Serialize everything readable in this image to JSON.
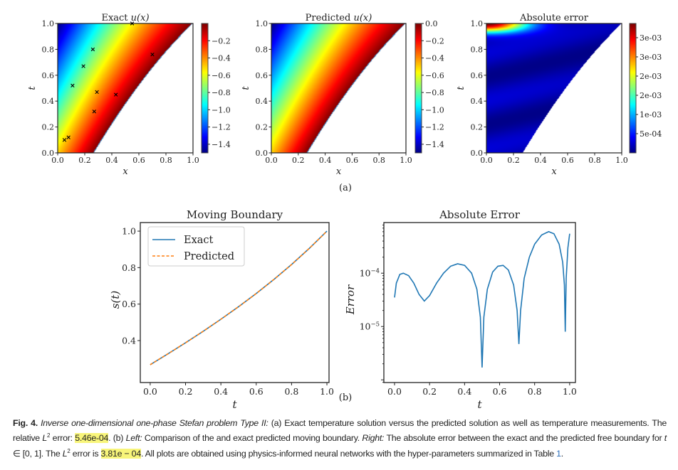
{
  "figure_a": {
    "label": "(a)",
    "colormap": "jet",
    "panels": [
      {
        "title": "Exact ",
        "title_math": "u(x)",
        "xlabel": "x",
        "ylabel": "t",
        "ticks": [
          "0.0",
          "0.2",
          "0.4",
          "0.6",
          "0.8",
          "1.0"
        ],
        "colorbar": {
          "range": [
            -1.5,
            0
          ],
          "ticks": [
            -0.2,
            -0.4,
            -0.6,
            -0.8,
            -1.0,
            -1.2,
            -1.4
          ],
          "labels": [
            "−0.2",
            "−0.4",
            "−0.6",
            "−0.8",
            "−1.0",
            "−1.2",
            "−1.4"
          ]
        },
        "measurements": [
          [
            0.05,
            0.1
          ],
          [
            0.08,
            0.12
          ],
          [
            0.11,
            0.52
          ],
          [
            0.19,
            0.67
          ],
          [
            0.26,
            0.8
          ],
          [
            0.27,
            0.32
          ],
          [
            0.29,
            0.47
          ],
          [
            0.43,
            0.45
          ],
          [
            0.55,
            1.0
          ],
          [
            0.7,
            0.76
          ]
        ]
      },
      {
        "title": "Predicted ",
        "title_math": "u(x)",
        "xlabel": "x",
        "ylabel": "t",
        "ticks": [
          "0.0",
          "0.2",
          "0.4",
          "0.6",
          "0.8",
          "1.0"
        ],
        "colorbar": {
          "range": [
            -1.5,
            0
          ],
          "ticks": [
            0.0,
            -0.2,
            -0.4,
            -0.6,
            -0.8,
            -1.0,
            -1.2,
            -1.4
          ],
          "labels": [
            "0.0",
            "−0.2",
            "−0.4",
            "−0.6",
            "−0.8",
            "−1.0",
            "−1.2",
            "−1.4"
          ]
        }
      },
      {
        "title": "Absolute error",
        "title_math": "",
        "xlabel": "x",
        "ylabel": "t",
        "ticks": [
          "0.0",
          "0.2",
          "0.4",
          "0.6",
          "0.8",
          "1.0"
        ],
        "colorbar": {
          "range": [
            0,
            0.00337
          ],
          "ticks": [
            0.003,
            0.0025,
            0.002,
            0.0015,
            0.001,
            0.0005
          ],
          "labels": [
            "3e-03",
            "3e-03",
            "2e-03",
            "2e-03",
            "1e-03",
            "5e-04"
          ]
        }
      }
    ]
  },
  "chart_data": [
    {
      "type": "line",
      "title": "Moving Boundary",
      "xlabel": "t",
      "ylabel": "s(t)",
      "xlim": [
        -0.056,
        1.012
      ],
      "ylim": [
        0.17,
        1.047
      ],
      "xticks": [
        "0.0",
        "0.2",
        "0.4",
        "0.6",
        "0.8",
        "1.0"
      ],
      "yticks": [
        "0.4",
        "0.6",
        "0.8",
        "1.0"
      ],
      "legend_position": "top-left",
      "x": [
        0.0,
        0.1,
        0.2,
        0.3,
        0.4,
        0.5,
        0.6,
        0.7,
        0.8,
        0.9,
        1.0
      ],
      "series": [
        {
          "name": "Exact",
          "color": "#1f77b4",
          "style": "solid",
          "values": [
            0.268,
            0.327,
            0.388,
            0.451,
            0.517,
            0.586,
            0.658,
            0.735,
            0.817,
            0.905,
            1.0
          ]
        },
        {
          "name": "Predicted",
          "color": "#ff7f0e",
          "style": "dashed",
          "values": [
            0.268,
            0.327,
            0.388,
            0.451,
            0.517,
            0.586,
            0.658,
            0.735,
            0.817,
            0.905,
            1.0
          ]
        }
      ]
    },
    {
      "type": "line",
      "title": "Absolute Error",
      "xlabel": "t",
      "ylabel": "Error",
      "yscale": "log",
      "xlim": [
        -0.061,
        1.033
      ],
      "ylim": [
        8.9e-07,
        0.00089
      ],
      "xticks": [
        "0.0",
        "0.2",
        "0.4",
        "0.6",
        "0.8",
        "1.0"
      ],
      "yticks": [
        {
          "value": 0.0001,
          "base": "10",
          "exp": "−4"
        },
        {
          "value": 1e-05,
          "base": "10",
          "exp": "−5"
        }
      ],
      "series": [
        {
          "color": "#1f77b4",
          "x": [
            0,
            0.01,
            0.03,
            0.05,
            0.08,
            0.11,
            0.14,
            0.17,
            0.2,
            0.24,
            0.28,
            0.32,
            0.36,
            0.4,
            0.44,
            0.47,
            0.49,
            0.5,
            0.51,
            0.53,
            0.56,
            0.59,
            0.62,
            0.65,
            0.68,
            0.7,
            0.71,
            0.72,
            0.74,
            0.77,
            0.8,
            0.84,
            0.88,
            0.91,
            0.94,
            0.96,
            0.97,
            0.975,
            0.98,
            0.99,
            1.0
          ],
          "values": [
            3.5e-05,
            6.5e-05,
            9.5e-05,
            0.0001,
            9e-05,
            6.5e-05,
            4e-05,
            3e-05,
            3.8e-05,
            6.5e-05,
            0.0001,
            0.000135,
            0.00015,
            0.00014,
            0.0001,
            5e-05,
            1.5e-05,
            1.7e-06,
            1.5e-05,
            5e-05,
            0.000105,
            0.000135,
            0.00014,
            0.000115,
            6e-05,
            2e-05,
            4.7e-06,
            2e-05,
            8e-05,
            0.0002,
            0.00035,
            0.00052,
            0.0006,
            0.00055,
            0.00035,
            0.00016,
            6e-05,
            8e-06,
            8e-05,
            0.0003,
            0.00055
          ]
        }
      ]
    }
  ],
  "figure_b": {
    "label": "(b)"
  },
  "caption": {
    "fig": "Fig. 4.",
    "p1": "Inverse one-dimensional one-phase Stefan problem Type II:",
    "p2": " (a) Exact temperature solution versus the predicted solution as well as temperature measurements. The relative ",
    "l2a": "L",
    "sup2a": "2",
    "p3": " error: ",
    "hl1": "5.46e-04",
    "p4": ". (b) ",
    "left": "Left:",
    "p5": " Comparison of the and exact predicted moving boundary. ",
    "right": "Right:",
    "p6": " The absolute error between the exact and the predicted free boundary for ",
    "tvar": "t",
    "p7": " ∈ [0, 1]. The ",
    "l2b": "L",
    "sup2b": "2",
    "p8": " error is ",
    "hl2": "3.81e − 04",
    "p9": ". All plots are obtained using physics-informed neural networks with the hyper-parameters summarized in Table ",
    "table_ref": "1",
    "p10": "."
  }
}
